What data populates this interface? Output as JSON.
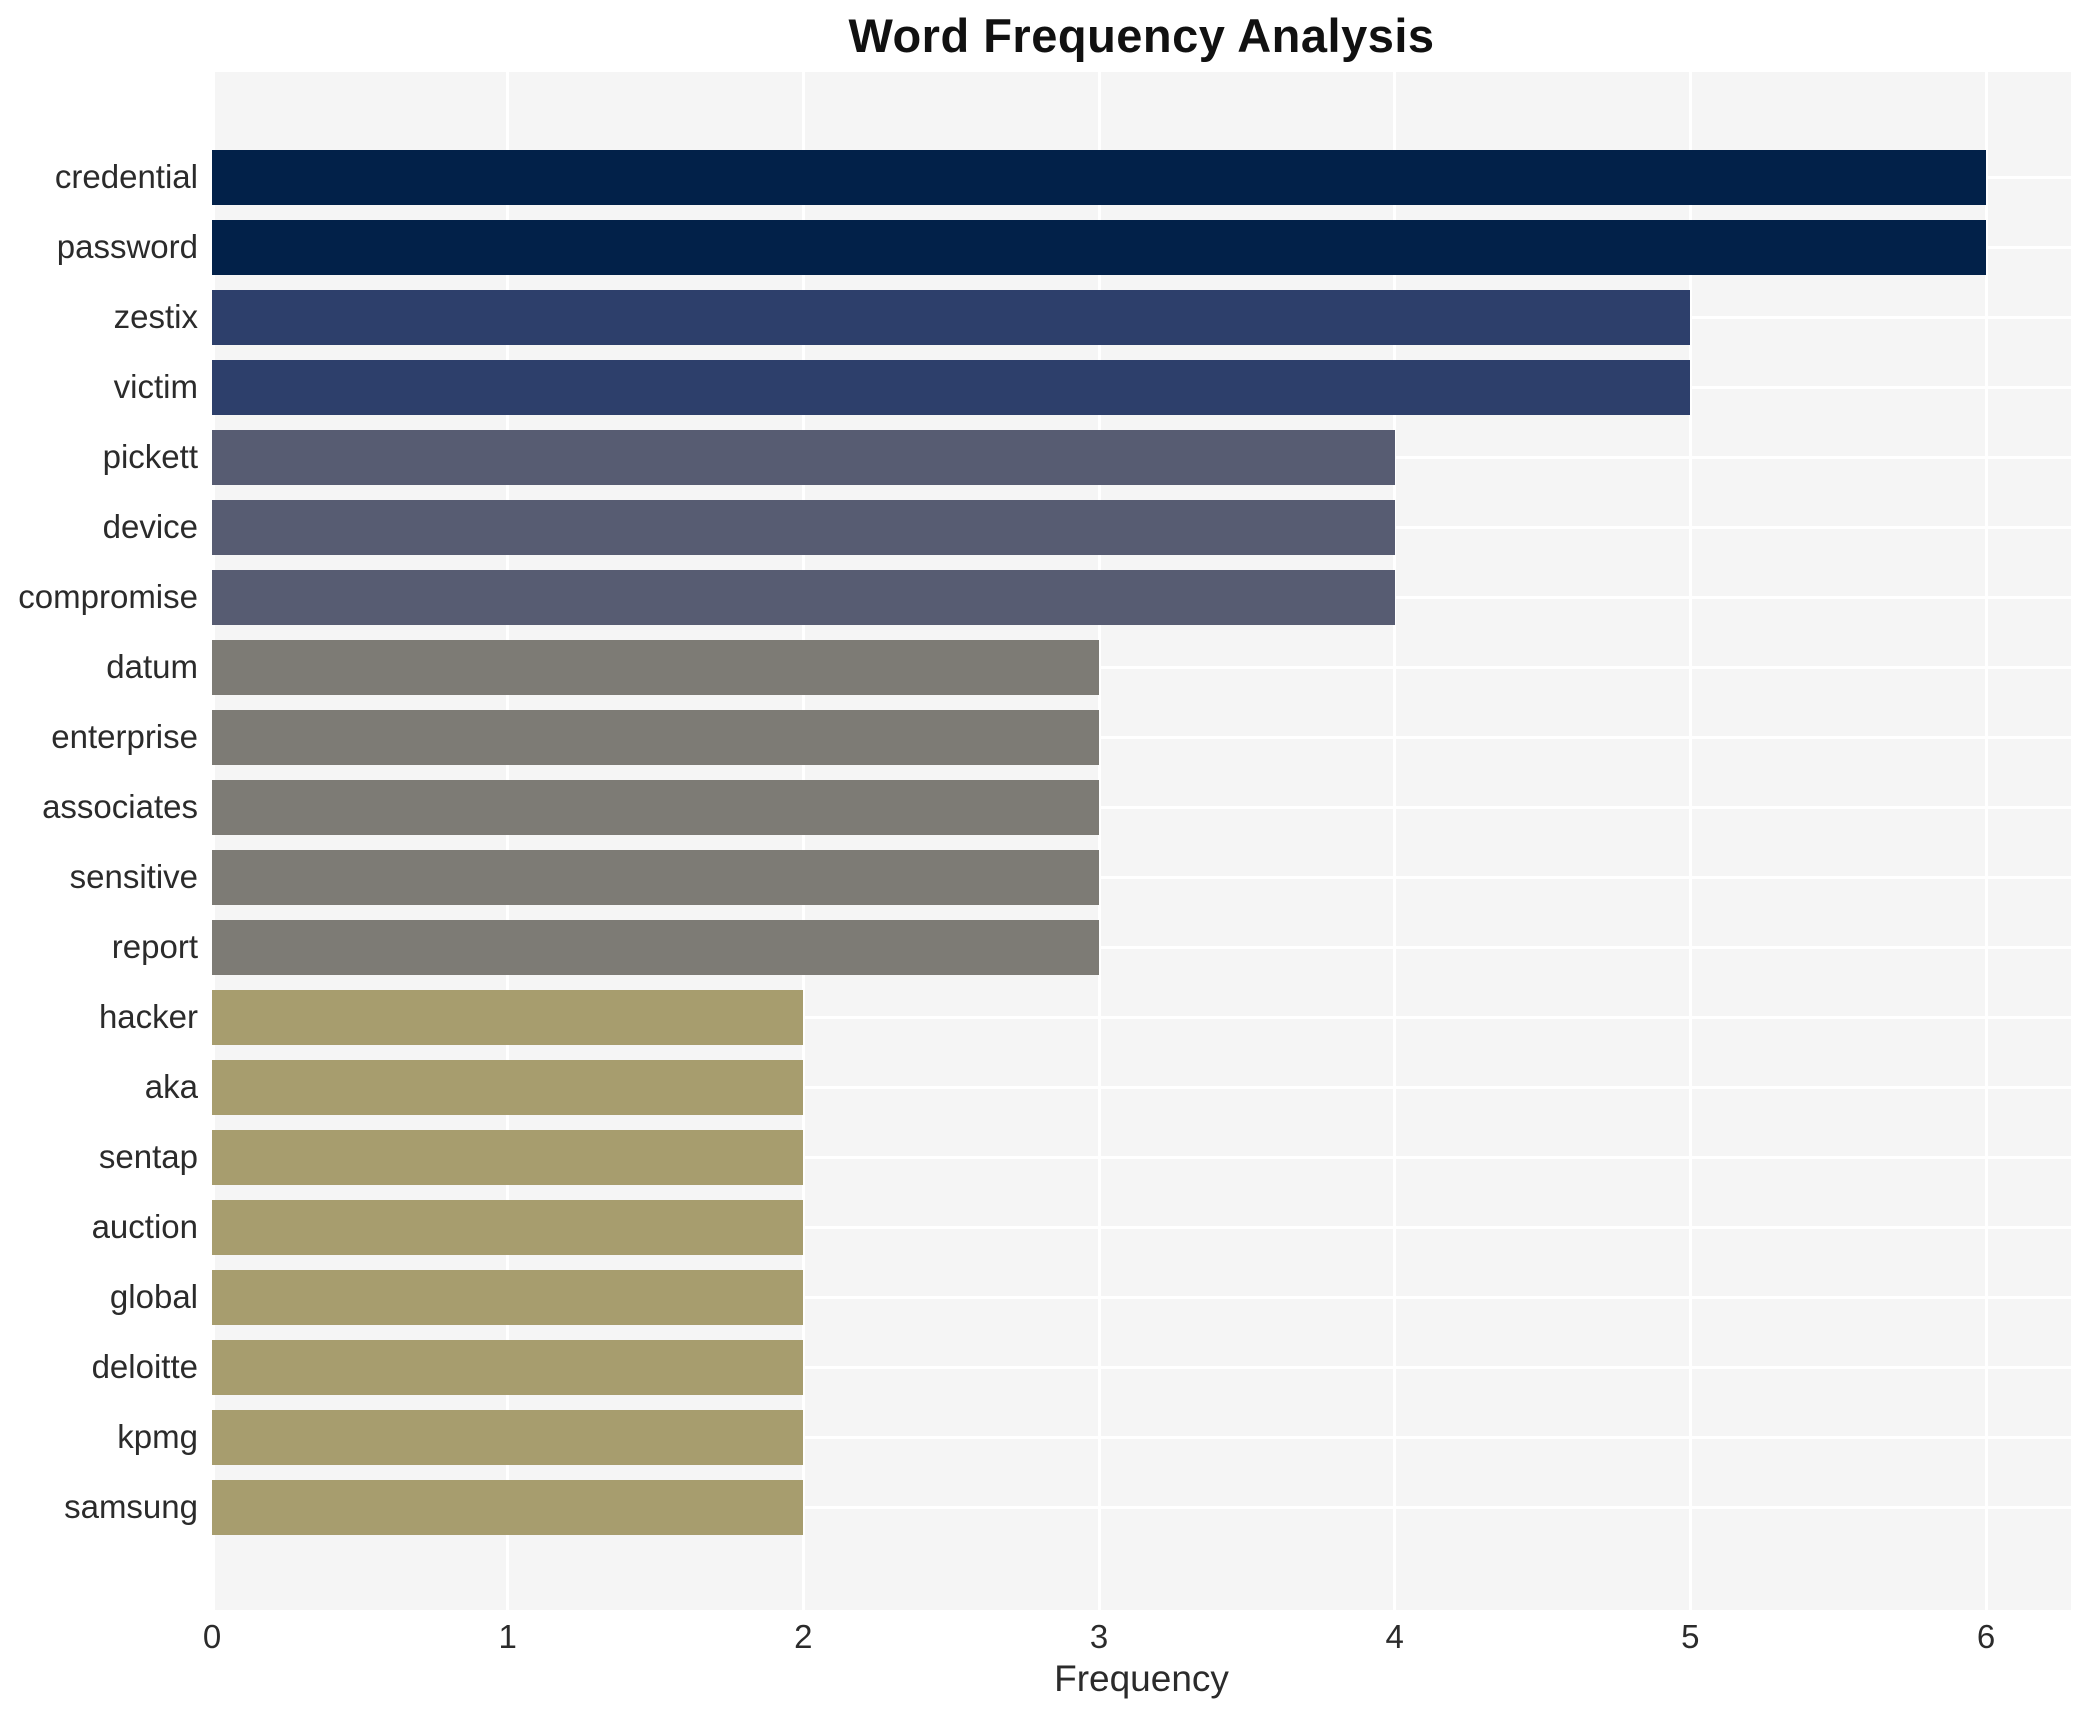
{
  "chart_data": {
    "type": "bar",
    "orientation": "horizontal",
    "title": "Word Frequency Analysis",
    "xlabel": "Frequency",
    "ylabel": "",
    "xlim": [
      0,
      6.29
    ],
    "x_ticks": [
      0,
      1,
      2,
      3,
      4,
      5,
      6
    ],
    "grid": true,
    "legend": "none",
    "categories": [
      "credential",
      "password",
      "zestix",
      "victim",
      "pickett",
      "device",
      "compromise",
      "datum",
      "enterprise",
      "associates",
      "sensitive",
      "report",
      "hacker",
      "aka",
      "sentap",
      "auction",
      "global",
      "deloitte",
      "kpmg",
      "samsung"
    ],
    "values": [
      6,
      6,
      5,
      5,
      4,
      4,
      4,
      3,
      3,
      3,
      3,
      3,
      2,
      2,
      2,
      2,
      2,
      2,
      2,
      2
    ],
    "bar_colors": [
      "#022149",
      "#022149",
      "#2d3f6b",
      "#2d3f6b",
      "#575c72",
      "#575c72",
      "#575c72",
      "#7d7b75",
      "#7d7b75",
      "#7d7b75",
      "#7d7b75",
      "#7d7b75",
      "#a79d6e",
      "#a79d6e",
      "#a79d6e",
      "#a79d6e",
      "#a79d6e",
      "#a79d6e",
      "#a79d6e",
      "#a79d6e"
    ],
    "value_color_map": {
      "6": "#022149",
      "5": "#2d3f6b",
      "4": "#575c72",
      "3": "#7d7b75",
      "2": "#a79d6e"
    },
    "plot_background": "#f5f5f5",
    "gridline_color": "#ffffff",
    "text_color": "#2b2b2b",
    "title_color": "#111111"
  }
}
